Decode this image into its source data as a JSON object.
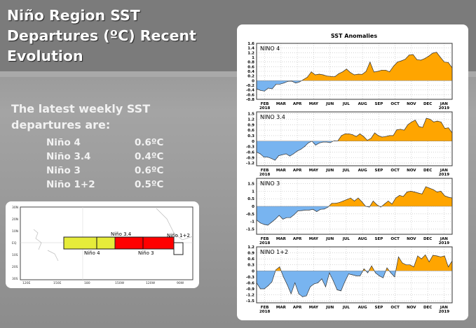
{
  "slide": {
    "title": "Niño Region SST Departures (ºC) Recent Evolution",
    "intro": "The latest weekly SST departures are:",
    "values": [
      {
        "region": "Niño 4",
        "value": "0.6ºC"
      },
      {
        "region": "Niño 3.4",
        "value": "0.4ºC"
      },
      {
        "region": "Niño 3",
        "value": "0.6ºC"
      },
      {
        "region": "Niño 1+2",
        "value": "0.5ºC"
      }
    ]
  },
  "map": {
    "lat_labels": [
      "30N",
      "20N",
      "10N",
      "EQ",
      "10S",
      "20S",
      "30S"
    ],
    "lon_labels": [
      "120E",
      "150E",
      "180",
      "150W",
      "120W",
      "90W"
    ],
    "regions": {
      "nino4": "Niño 4",
      "nino34": "Niño 3.4",
      "nino3": "Niño 3",
      "nino12": "Niño 1+2"
    },
    "colors": {
      "nino4": "#e6ec3a",
      "nino3": "#ff0000",
      "nino12": "#ffffff"
    }
  },
  "colors": {
    "positive": "#ffa500",
    "negative": "#78b4f0"
  },
  "chart_data": {
    "type": "area",
    "title": "SST Anomalies",
    "xlim": [
      0,
      12
    ],
    "x_ticks": [
      {
        "label": "FEB",
        "pos": 0.5,
        "year": "2018"
      },
      {
        "label": "MAR",
        "pos": 1.5
      },
      {
        "label": "APR",
        "pos": 2.5
      },
      {
        "label": "MAY",
        "pos": 3.5
      },
      {
        "label": "JUN",
        "pos": 4.5
      },
      {
        "label": "JUL",
        "pos": 5.5
      },
      {
        "label": "AUG",
        "pos": 6.5
      },
      {
        "label": "SEP",
        "pos": 7.5
      },
      {
        "label": "OCT",
        "pos": 8.5
      },
      {
        "label": "NOV",
        "pos": 9.5
      },
      {
        "label": "DEC",
        "pos": 10.5
      },
      {
        "label": "JAN",
        "pos": 11.5,
        "year": "2019"
      }
    ],
    "panels": [
      {
        "name": "NINO 4",
        "ylim": [
          -0.8,
          1.6
        ],
        "yticks": [
          "1.6",
          "1.4",
          "1.2",
          "1",
          "0.8",
          "0.6",
          "0.4",
          "0.2",
          "0",
          "-0.2",
          "-0.4",
          "-0.6",
          "-0.8"
        ],
        "values": [
          -0.35,
          -0.42,
          -0.45,
          -0.32,
          -0.35,
          -0.15,
          -0.15,
          -0.1,
          -0.03,
          -0.02,
          -0.1,
          -0.05,
          0.05,
          0.15,
          0.38,
          0.25,
          0.28,
          0.25,
          0.2,
          0.18,
          0.17,
          0.3,
          0.38,
          0.5,
          0.35,
          0.25,
          0.28,
          0.27,
          0.4,
          0.8,
          0.37,
          0.4,
          0.45,
          0.45,
          0.38,
          0.62,
          0.8,
          0.85,
          0.92,
          1.1,
          1.12,
          0.9,
          0.88,
          0.95,
          1.05,
          1.18,
          1.22,
          1.0,
          0.8,
          0.78,
          0.55
        ]
      },
      {
        "name": "NINO 3.4",
        "ylim": [
          -1.35,
          1.6
        ],
        "yticks": [
          "1.5",
          "1.2",
          "0.9",
          "0.6",
          "0.3",
          "0",
          "-0.3",
          "-0.6",
          "-0.9",
          "-1.2"
        ],
        "values": [
          -0.6,
          -0.7,
          -0.88,
          -0.88,
          -0.95,
          -1.05,
          -0.8,
          -0.75,
          -0.7,
          -0.82,
          -0.7,
          -0.55,
          -0.45,
          -0.3,
          -0.1,
          0,
          -0.22,
          -0.1,
          -0.05,
          -0.05,
          -0.08,
          0.02,
          0.01,
          0.3,
          0.4,
          0.4,
          0.35,
          0.25,
          0.4,
          0.25,
          0.05,
          0.15,
          0.45,
          0.3,
          0.22,
          0.25,
          0.3,
          0.3,
          0.62,
          0.65,
          0.6,
          0.9,
          1.05,
          1.15,
          0.8,
          0.75,
          1.25,
          1.2,
          1.05,
          1.1,
          1.05,
          0.7,
          0.73,
          0.45
        ]
      },
      {
        "name": "NINO 3",
        "ylim": [
          -1.85,
          1.85
        ],
        "yticks": [
          "1.5",
          "1",
          "0.5",
          "0",
          "-0.5",
          "-1",
          "-1.5"
        ],
        "values": [
          -0.9,
          -1.1,
          -1.2,
          -1.25,
          -1.05,
          -0.85,
          -0.6,
          -0.85,
          -0.75,
          -0.75,
          -0.55,
          -0.3,
          -0.28,
          -0.25,
          -0.25,
          -0.2,
          -0.35,
          -0.2,
          -0.18,
          -0.05,
          0.2,
          0.2,
          0.25,
          0.35,
          0.45,
          0.55,
          0.35,
          0.55,
          0.3,
          0,
          -0.05,
          0.35,
          0.1,
          -0.05,
          0.15,
          0.35,
          0.15,
          0.55,
          0.72,
          0.65,
          0.95,
          1.0,
          0.95,
          0.88,
          0.82,
          1.3,
          1.2,
          1.1,
          0.95,
          1.0,
          0.7,
          0.6,
          0.55
        ]
      },
      {
        "name": "NINO 1+2",
        "ylim": [
          -1.6,
          1.2
        ],
        "yticks": [
          "1.2",
          "0.9",
          "0.6",
          "0.3",
          "0",
          "-0.3",
          "-0.6",
          "-0.9",
          "-1.2",
          "-1.5"
        ],
        "values": [
          -0.6,
          -0.9,
          -0.9,
          -0.75,
          -0.55,
          0.05,
          0.2,
          -0.3,
          -0.7,
          -1.15,
          -0.6,
          -1.15,
          -1.3,
          -1.25,
          -0.8,
          -0.65,
          -0.6,
          -0.4,
          -0.8,
          -0.1,
          -0.5,
          -0.95,
          -1.0,
          -0.55,
          -0.15,
          -0.2,
          -0.25,
          -0.25,
          0.1,
          -0.1,
          0.25,
          -0.1,
          -0.25,
          -0.35,
          0.15,
          -0.1,
          -0.3,
          0.7,
          0.4,
          0.3,
          0.3,
          0.2,
          0.75,
          0.6,
          0.8,
          0.45,
          0.78,
          0.75,
          0.7,
          0.75,
          0.2,
          0.5
        ]
      }
    ]
  }
}
